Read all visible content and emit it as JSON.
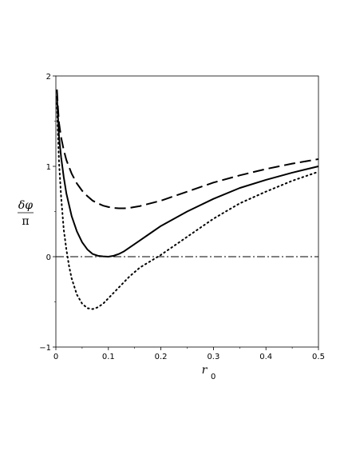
{
  "chart_data": {
    "type": "line",
    "xlabel": {
      "main": "r",
      "sub": "0"
    },
    "ylabel": {
      "numerator": "δφ",
      "denominator": "π"
    },
    "xlim": [
      0,
      0.5
    ],
    "ylim": [
      -1,
      2
    ],
    "xticks": [
      "0",
      "0.1",
      "0.2",
      "0.3",
      "0.4",
      "0.5"
    ],
    "yticks": [
      "−1",
      "0",
      "1",
      "2"
    ],
    "grid": false,
    "legend": "none",
    "series": [
      {
        "style": "dashed",
        "x": [
          0.002,
          0.004,
          0.006,
          0.01,
          0.015,
          0.02,
          0.03,
          0.04,
          0.05,
          0.06,
          0.07,
          0.08,
          0.09,
          0.1,
          0.11,
          0.12,
          0.13,
          0.14,
          0.16,
          0.18,
          0.2,
          0.25,
          0.3,
          0.35,
          0.4,
          0.45,
          0.5
        ],
        "y": [
          1.85,
          1.65,
          1.48,
          1.32,
          1.18,
          1.07,
          0.92,
          0.81,
          0.73,
          0.67,
          0.62,
          0.59,
          0.565,
          0.55,
          0.54,
          0.535,
          0.535,
          0.54,
          0.56,
          0.59,
          0.62,
          0.72,
          0.82,
          0.9,
          0.97,
          1.03,
          1.08
        ]
      },
      {
        "style": "solid",
        "x": [
          0.002,
          0.004,
          0.006,
          0.01,
          0.015,
          0.02,
          0.03,
          0.04,
          0.05,
          0.06,
          0.07,
          0.08,
          0.09,
          0.1,
          0.11,
          0.12,
          0.13,
          0.14,
          0.16,
          0.18,
          0.2,
          0.25,
          0.3,
          0.35,
          0.4,
          0.45,
          0.5
        ],
        "y": [
          1.78,
          1.55,
          1.33,
          1.1,
          0.88,
          0.7,
          0.45,
          0.28,
          0.16,
          0.08,
          0.03,
          0.01,
          0.003,
          0.0,
          0.01,
          0.03,
          0.06,
          0.1,
          0.18,
          0.26,
          0.34,
          0.5,
          0.64,
          0.76,
          0.85,
          0.93,
          1.0
        ]
      },
      {
        "style": "dotted",
        "x": [
          0.002,
          0.004,
          0.006,
          0.01,
          0.015,
          0.02,
          0.025,
          0.03,
          0.04,
          0.05,
          0.06,
          0.07,
          0.08,
          0.09,
          0.1,
          0.12,
          0.14,
          0.16,
          0.18,
          0.2,
          0.22,
          0.25,
          0.3,
          0.35,
          0.4,
          0.45,
          0.5
        ],
        "y": [
          1.7,
          1.35,
          1.05,
          0.66,
          0.3,
          0.08,
          -0.1,
          -0.24,
          -0.42,
          -0.52,
          -0.57,
          -0.58,
          -0.56,
          -0.52,
          -0.46,
          -0.34,
          -0.22,
          -0.12,
          -0.05,
          0.02,
          0.1,
          0.22,
          0.42,
          0.59,
          0.72,
          0.84,
          0.94
        ]
      },
      {
        "style": "dashdot",
        "x": [
          0,
          0.5
        ],
        "y": [
          0,
          0
        ]
      }
    ]
  }
}
